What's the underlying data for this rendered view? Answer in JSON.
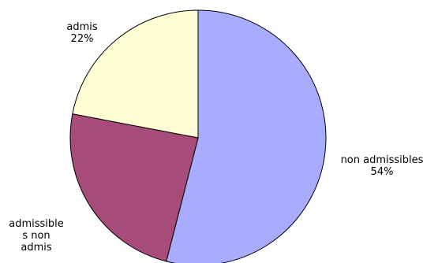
{
  "chart_data": {
    "type": "pie",
    "start": "12 o'clock, clockwise",
    "slices": [
      {
        "label": "non admissibles",
        "value": 54,
        "value_label": "54%",
        "color": "#a8acfe"
      },
      {
        "label": "admissibles non admis",
        "value": 24,
        "value_label": "",
        "color": "#a64b7a"
      },
      {
        "label": "admis",
        "value": 22,
        "value_label": "22%",
        "color": "#fefdd3"
      }
    ],
    "labels": {
      "non_admissibles": {
        "name": "non admissibles",
        "pct": "54%"
      },
      "admis": {
        "name": "admis",
        "pct": "22%"
      },
      "admissibles_non_admis": {
        "name": "admissible\ns non\nadmis"
      }
    },
    "border_color": "#000000",
    "legend": "none"
  }
}
